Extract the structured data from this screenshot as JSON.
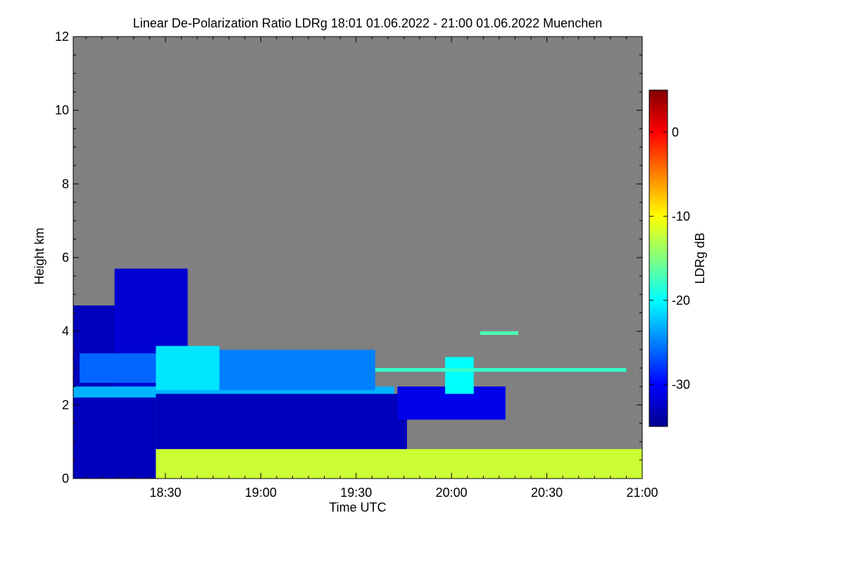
{
  "chart_data": {
    "type": "heatmap",
    "title": "Linear De-Polarization Ratio LDRg   18:01 01.06.2022 - 21:00 01.06.2022 Muenchen",
    "xlabel": "Time UTC",
    "ylabel": "Height km",
    "x_ticks": [
      "18:30",
      "19:00",
      "19:30",
      "20:00",
      "20:30",
      "21:00"
    ],
    "y_ticks": [
      "0",
      "2",
      "4",
      "6",
      "8",
      "10",
      "12"
    ],
    "y_tick_values": [
      0,
      2,
      4,
      6,
      8,
      10,
      12
    ],
    "xlim": [
      "18:01",
      "21:00"
    ],
    "ylim": [
      0,
      12
    ],
    "background_color": "#808080",
    "colorbar": {
      "label": "LDRg dB",
      "ticks": [
        "0",
        "-10",
        "-20",
        "-30"
      ],
      "tick_values": [
        0,
        -10,
        -20,
        -30
      ],
      "range": [
        -35,
        5
      ],
      "colormap": [
        "#00008f",
        "#0000ff",
        "#0080ff",
        "#00ffff",
        "#80ff80",
        "#ffff00",
        "#ff8000",
        "#ff0000",
        "#800000"
      ]
    },
    "features": [
      {
        "t_start": "18:01",
        "t_end": "18:27",
        "h_bottom": 0.0,
        "h_top": 4.7,
        "ldr_db": -33
      },
      {
        "t_start": "18:14",
        "t_end": "18:37",
        "h_bottom": 2.4,
        "h_top": 5.7,
        "ldr_db": -32
      },
      {
        "t_start": "18:03",
        "t_end": "18:28",
        "h_bottom": 2.6,
        "h_top": 3.4,
        "ldr_db": -26
      },
      {
        "t_start": "18:01",
        "t_end": "19:42",
        "h_bottom": 2.2,
        "h_top": 2.5,
        "ldr_db": -23
      },
      {
        "t_start": "18:27",
        "t_end": "18:47",
        "h_bottom": 2.4,
        "h_top": 3.6,
        "ldr_db": -21
      },
      {
        "t_start": "18:47",
        "t_end": "19:36",
        "h_bottom": 2.4,
        "h_top": 3.5,
        "ldr_db": -25
      },
      {
        "t_start": "18:27",
        "t_end": "19:46",
        "h_bottom": 0.3,
        "h_top": 2.3,
        "ldr_db": -33
      },
      {
        "t_start": "19:43",
        "t_end": "20:17",
        "h_bottom": 1.6,
        "h_top": 2.5,
        "ldr_db": -31
      },
      {
        "t_start": "19:58",
        "t_end": "20:07",
        "h_bottom": 2.3,
        "h_top": 3.3,
        "ldr_db": -20
      },
      {
        "t_start": "19:36",
        "t_end": "20:55",
        "h_bottom": 2.9,
        "h_top": 3.0,
        "ldr_db": -18
      },
      {
        "t_start": "20:09",
        "t_end": "20:21",
        "h_bottom": 3.9,
        "h_top": 4.0,
        "ldr_db": -17
      },
      {
        "t_start": "18:27",
        "t_end": "21:00",
        "h_bottom": 0.0,
        "h_top": 0.8,
        "ldr_db": -12
      }
    ]
  }
}
